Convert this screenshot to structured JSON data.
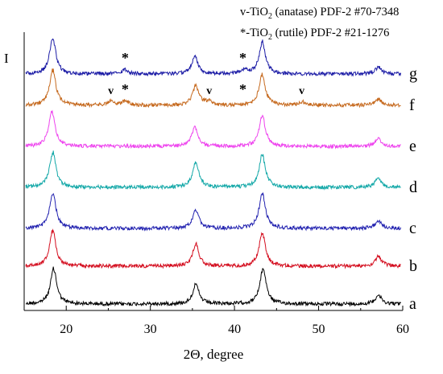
{
  "chart_data": {
    "type": "line",
    "title": "",
    "xlabel": "2Θ, degree",
    "ylabel": "I",
    "xlim": [
      15,
      60
    ],
    "xticks": [
      20,
      30,
      40,
      50,
      60
    ],
    "grid": false,
    "legend_position": "top-right",
    "legend": [
      {
        "marker": "v",
        "prefix": "-TiO",
        "sub": "2",
        "text": " (anatase) PDF-2 #70-7348"
      },
      {
        "marker": "*",
        "prefix": "-TiO",
        "sub": "2",
        "text": " (rutile) PDF-2 #21-1276"
      }
    ],
    "series": [
      {
        "label": "a",
        "color": "#000000",
        "peaks": [
          [
            18.5,
            1.0
          ],
          [
            35.4,
            0.55
          ],
          [
            43.4,
            1.0
          ],
          [
            57.1,
            0.25
          ]
        ],
        "markers": []
      },
      {
        "label": "b",
        "color": "#d40d1e",
        "peaks": [
          [
            18.4,
            1.0
          ],
          [
            35.4,
            0.62
          ],
          [
            43.3,
            0.95
          ],
          [
            57.1,
            0.28
          ]
        ],
        "markers": []
      },
      {
        "label": "c",
        "color": "#2323b0",
        "peaks": [
          [
            18.4,
            1.0
          ],
          [
            35.4,
            0.5
          ],
          [
            43.3,
            0.98
          ],
          [
            57.1,
            0.22
          ]
        ],
        "markers": []
      },
      {
        "label": "d",
        "color": "#14a8a8",
        "peaks": [
          [
            18.4,
            1.0
          ],
          [
            35.4,
            0.72
          ],
          [
            43.3,
            0.92
          ],
          [
            57.1,
            0.25
          ]
        ],
        "markers": []
      },
      {
        "label": "e",
        "color": "#ee44ee",
        "peaks": [
          [
            18.3,
            1.0
          ],
          [
            35.3,
            0.55
          ],
          [
            43.3,
            0.85
          ],
          [
            57.1,
            0.22
          ]
        ],
        "markers": []
      },
      {
        "label": "f",
        "color": "#c66a1f",
        "peaks": [
          [
            18.4,
            1.0
          ],
          [
            25.3,
            0.12
          ],
          [
            27.0,
            0.12
          ],
          [
            35.4,
            0.55
          ],
          [
            36.9,
            0.1
          ],
          [
            43.3,
            0.85
          ],
          [
            48.0,
            0.1
          ],
          [
            57.1,
            0.18
          ]
        ],
        "markers": [
          {
            "symbol": "v",
            "x": 25.3
          },
          {
            "symbol": "*",
            "x": 27.0
          },
          {
            "symbol": "v",
            "x": 37.0
          },
          {
            "symbol": "*",
            "x": 41.0
          },
          {
            "symbol": "v",
            "x": 48.0
          }
        ]
      },
      {
        "label": "g",
        "color": "#1c1ca6",
        "peaks": [
          [
            18.4,
            1.0
          ],
          [
            27.0,
            0.12
          ],
          [
            35.3,
            0.48
          ],
          [
            41.2,
            0.1
          ],
          [
            43.3,
            0.9
          ],
          [
            57.1,
            0.2
          ]
        ],
        "markers": [
          {
            "symbol": "*",
            "x": 27.0
          },
          {
            "symbol": "*",
            "x": 41.0
          }
        ]
      }
    ]
  }
}
